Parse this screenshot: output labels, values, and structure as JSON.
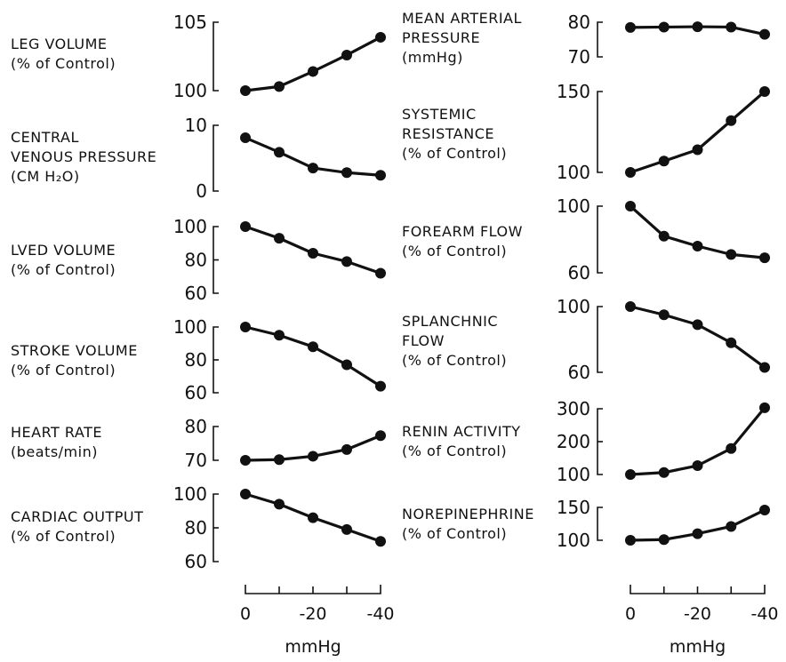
{
  "chart_data": [
    {
      "type": "line",
      "ylabel": [
        "LEG VOLUME",
        "(% of Control)"
      ],
      "x": [
        0,
        -10,
        -20,
        -30,
        -40
      ],
      "values": [
        100,
        100.3,
        101.4,
        102.6,
        103.9
      ],
      "yticks": [
        "105",
        "100"
      ],
      "ylim": [
        100,
        105
      ]
    },
    {
      "type": "line",
      "ylabel": [
        "CENTRAL",
        "VENOUS PRESSURE",
        "(CM H₂O)"
      ],
      "x": [
        0,
        -10,
        -20,
        -30,
        -40
      ],
      "values": [
        8.1,
        5.9,
        3.5,
        2.8,
        2.4
      ],
      "yticks": [
        "10",
        "0"
      ],
      "ylim": [
        0,
        10
      ]
    },
    {
      "type": "line",
      "ylabel": [
        "LVED VOLUME",
        "(% of Control)"
      ],
      "x": [
        0,
        -10,
        -20,
        -30,
        -40
      ],
      "values": [
        100,
        93,
        84,
        79,
        72
      ],
      "yticks": [
        "100",
        "80",
        "60"
      ],
      "ylim": [
        60,
        100
      ]
    },
    {
      "type": "line",
      "ylabel": [
        "STROKE VOLUME",
        "(% of Control)"
      ],
      "x": [
        0,
        -10,
        -20,
        -30,
        -40
      ],
      "values": [
        100,
        95,
        88,
        77,
        64
      ],
      "yticks": [
        "100",
        "80",
        "60"
      ],
      "ylim": [
        60,
        100
      ]
    },
    {
      "type": "line",
      "ylabel": [
        "HEART RATE",
        "(beats/min)"
      ],
      "x": [
        0,
        -10,
        -20,
        -30,
        -40
      ],
      "values": [
        70,
        70.2,
        71.2,
        73.2,
        77.3
      ],
      "yticks": [
        "80",
        "70"
      ],
      "ylim": [
        70,
        80
      ]
    },
    {
      "type": "line",
      "ylabel": [
        "CARDIAC OUTPUT",
        "(% of Control)"
      ],
      "x": [
        0,
        -10,
        -20,
        -30,
        -40
      ],
      "values": [
        100,
        94,
        86,
        79,
        72
      ],
      "yticks": [
        "100",
        "80",
        "60"
      ],
      "ylim": [
        60,
        100
      ]
    },
    {
      "type": "line",
      "ylabel": [
        "MEAN ARTERIAL",
        "PRESSURE",
        "(mmHg)"
      ],
      "x": [
        0,
        -10,
        -20,
        -30,
        -40
      ],
      "values": [
        78.5,
        78.6,
        78.7,
        78.6,
        76.5
      ],
      "yticks": [
        "80",
        "70"
      ],
      "ylim": [
        70,
        80
      ]
    },
    {
      "type": "line",
      "ylabel": [
        "SYSTEMIC",
        "RESISTANCE",
        "(% of Control)"
      ],
      "x": [
        0,
        -10,
        -20,
        -30,
        -40
      ],
      "values": [
        100,
        107,
        114,
        132,
        150
      ],
      "yticks": [
        "150",
        "100"
      ],
      "ylim": [
        100,
        150
      ]
    },
    {
      "type": "line",
      "ylabel": [
        "FOREARM FLOW",
        "(% of Control)"
      ],
      "x": [
        0,
        -10,
        -20,
        -30,
        -40
      ],
      "values": [
        100,
        82,
        76,
        71,
        69
      ],
      "yticks": [
        "100",
        "60"
      ],
      "ylim": [
        60,
        100
      ]
    },
    {
      "type": "line",
      "ylabel": [
        "SPLANCHNIC",
        "FLOW",
        "(% of Control)"
      ],
      "x": [
        0,
        -10,
        -20,
        -30,
        -40
      ],
      "values": [
        100,
        95,
        89,
        78,
        63
      ],
      "yticks": [
        "100",
        "60"
      ],
      "ylim": [
        60,
        100
      ]
    },
    {
      "type": "line",
      "ylabel": [
        "RENIN ACTIVITY",
        "(% of Control)"
      ],
      "x": [
        0,
        -10,
        -20,
        -30,
        -40
      ],
      "values": [
        100,
        106,
        127,
        179,
        303
      ],
      "yticks": [
        "300",
        "200",
        "100"
      ],
      "ylim": [
        100,
        300
      ]
    },
    {
      "type": "line",
      "ylabel": [
        "NOREPINEPHRINE",
        "(% of Control)"
      ],
      "x": [
        0,
        -10,
        -20,
        -30,
        -40
      ],
      "values": [
        100,
        101,
        110,
        121,
        146
      ],
      "yticks": [
        "150",
        "100"
      ],
      "ylim": [
        100,
        150
      ]
    }
  ],
  "x_axes": [
    {
      "xtick_labels": [
        "0",
        "-20",
        "-40"
      ],
      "xlabel": "mmHg"
    },
    {
      "xtick_labels": [
        "0",
        "-20",
        "-40"
      ],
      "xlabel": "mmHg"
    }
  ]
}
